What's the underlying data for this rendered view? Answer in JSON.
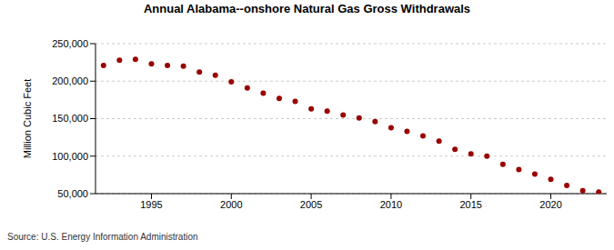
{
  "chart_data": {
    "type": "scatter",
    "title": "Annual Alabama--onshore Natural Gas Gross Withdrawals",
    "y_label": "Million Cubic Feet",
    "source": "Source: U.S. Energy Information Administration",
    "x": [
      1992,
      1993,
      1994,
      1995,
      1996,
      1997,
      1998,
      1999,
      2000,
      2001,
      2002,
      2003,
      2004,
      2005,
      2006,
      2007,
      2008,
      2009,
      2010,
      2011,
      2012,
      2013,
      2014,
      2015,
      2016,
      2017,
      2018,
      2019,
      2020,
      2021,
      2022,
      2023
    ],
    "values": [
      221000,
      228000,
      229000,
      223000,
      221000,
      220000,
      212000,
      208000,
      199000,
      191000,
      184000,
      177000,
      173000,
      163000,
      160000,
      155000,
      151000,
      146000,
      138000,
      133000,
      127000,
      120000,
      109000,
      103000,
      100000,
      89000,
      82000,
      76000,
      69000,
      61000,
      54000,
      52000
    ],
    "color": "#990000",
    "marker": "circle",
    "xlim": [
      1991.5,
      2023.5
    ],
    "xticks": [
      1995,
      2000,
      2005,
      2010,
      2015,
      2020
    ],
    "ylim": [
      50000,
      250000
    ],
    "yticks": [
      {
        "value": 50000,
        "label": "50,000"
      },
      {
        "value": 100000,
        "label": "100,000"
      },
      {
        "value": 150000,
        "label": "150,000"
      },
      {
        "value": 200000,
        "label": "200,000"
      },
      {
        "value": 250000,
        "label": "250,000"
      }
    ],
    "grid": true
  }
}
